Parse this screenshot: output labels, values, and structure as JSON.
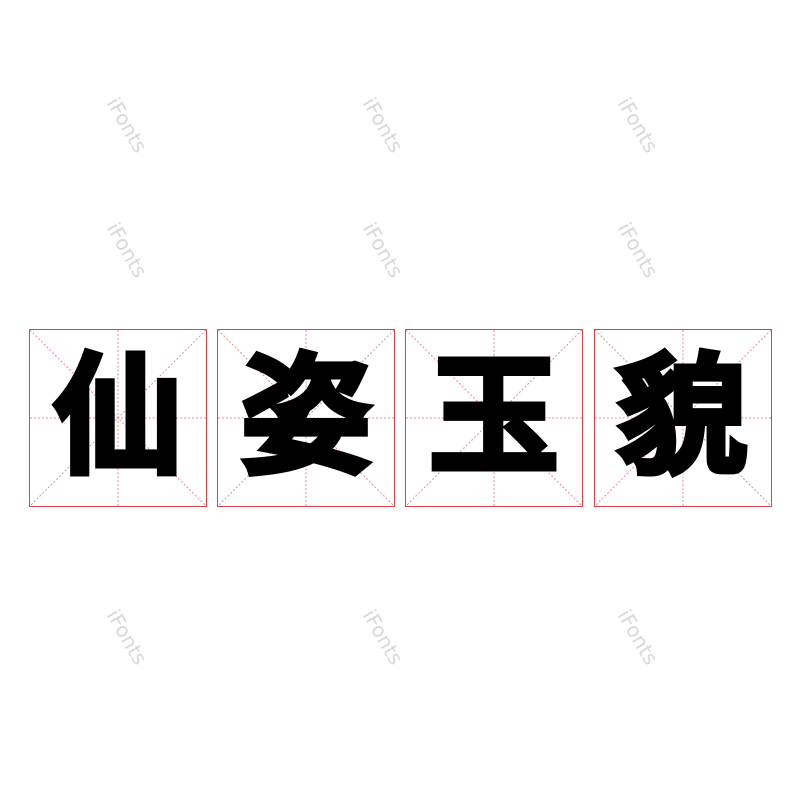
{
  "characters": [
    "仙",
    "姿",
    "玉",
    "貌"
  ],
  "watermark": "iFonts",
  "colors": {
    "grid": "#d9434a",
    "text": "#000000",
    "watermark": "#d8d8d8"
  }
}
